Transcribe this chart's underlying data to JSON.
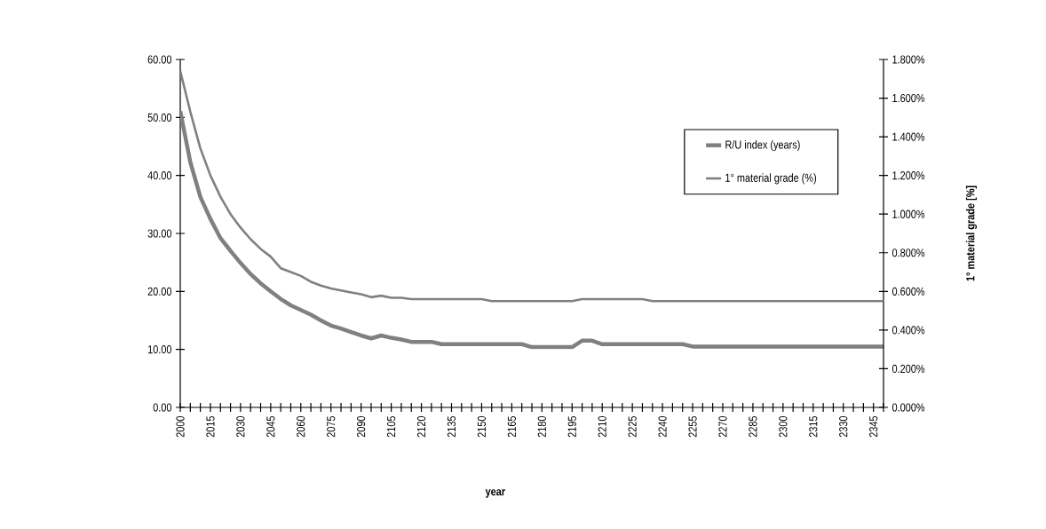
{
  "chart_data": {
    "type": "line",
    "xlabel": "year",
    "y2label": "1° material grade [%]",
    "xlim": [
      2000,
      2350
    ],
    "ylim": [
      0,
      60
    ],
    "y2lim": [
      0,
      1.8
    ],
    "xticks": [
      {
        "value": 2000,
        "label": "2000"
      },
      {
        "value": 2005,
        "label": null
      },
      {
        "value": 2010,
        "label": null
      },
      {
        "value": 2015,
        "label": "2015"
      },
      {
        "value": 2020,
        "label": null
      },
      {
        "value": 2025,
        "label": null
      },
      {
        "value": 2030,
        "label": "2030"
      },
      {
        "value": 2035,
        "label": null
      },
      {
        "value": 2040,
        "label": null
      },
      {
        "value": 2045,
        "label": "2045"
      },
      {
        "value": 2050,
        "label": null
      },
      {
        "value": 2055,
        "label": null
      },
      {
        "value": 2060,
        "label": "2060"
      },
      {
        "value": 2065,
        "label": null
      },
      {
        "value": 2070,
        "label": null
      },
      {
        "value": 2075,
        "label": "2075"
      },
      {
        "value": 2080,
        "label": null
      },
      {
        "value": 2085,
        "label": null
      },
      {
        "value": 2090,
        "label": "2090"
      },
      {
        "value": 2095,
        "label": null
      },
      {
        "value": 2100,
        "label": null
      },
      {
        "value": 2105,
        "label": "2105"
      },
      {
        "value": 2110,
        "label": null
      },
      {
        "value": 2115,
        "label": null
      },
      {
        "value": 2120,
        "label": "2120"
      },
      {
        "value": 2125,
        "label": null
      },
      {
        "value": 2130,
        "label": null
      },
      {
        "value": 2135,
        "label": "2135"
      },
      {
        "value": 2140,
        "label": null
      },
      {
        "value": 2145,
        "label": null
      },
      {
        "value": 2150,
        "label": "2150"
      },
      {
        "value": 2155,
        "label": null
      },
      {
        "value": 2160,
        "label": null
      },
      {
        "value": 2165,
        "label": "2165"
      },
      {
        "value": 2170,
        "label": null
      },
      {
        "value": 2175,
        "label": null
      },
      {
        "value": 2180,
        "label": "2180"
      },
      {
        "value": 2185,
        "label": null
      },
      {
        "value": 2190,
        "label": null
      },
      {
        "value": 2195,
        "label": "2195"
      },
      {
        "value": 2200,
        "label": null
      },
      {
        "value": 2205,
        "label": null
      },
      {
        "value": 2210,
        "label": "2210"
      },
      {
        "value": 2215,
        "label": null
      },
      {
        "value": 2220,
        "label": null
      },
      {
        "value": 2225,
        "label": "2225"
      },
      {
        "value": 2230,
        "label": null
      },
      {
        "value": 2235,
        "label": null
      },
      {
        "value": 2240,
        "label": "2240"
      },
      {
        "value": 2245,
        "label": null
      },
      {
        "value": 2250,
        "label": null
      },
      {
        "value": 2255,
        "label": "2255"
      },
      {
        "value": 2260,
        "label": null
      },
      {
        "value": 2265,
        "label": null
      },
      {
        "value": 2270,
        "label": "2270"
      },
      {
        "value": 2275,
        "label": null
      },
      {
        "value": 2280,
        "label": null
      },
      {
        "value": 2285,
        "label": "2285"
      },
      {
        "value": 2290,
        "label": null
      },
      {
        "value": 2295,
        "label": null
      },
      {
        "value": 2300,
        "label": "2300"
      },
      {
        "value": 2305,
        "label": null
      },
      {
        "value": 2310,
        "label": null
      },
      {
        "value": 2315,
        "label": "2315"
      },
      {
        "value": 2320,
        "label": null
      },
      {
        "value": 2325,
        "label": null
      },
      {
        "value": 2330,
        "label": "2330"
      },
      {
        "value": 2335,
        "label": null
      },
      {
        "value": 2340,
        "label": null
      },
      {
        "value": 2345,
        "label": "2345"
      },
      {
        "value": 2350,
        "label": null
      }
    ],
    "yticks": [
      {
        "value": 0,
        "label": "0.00"
      },
      {
        "value": 10,
        "label": "10.00"
      },
      {
        "value": 20,
        "label": "20.00"
      },
      {
        "value": 30,
        "label": "30.00"
      },
      {
        "value": 40,
        "label": "40.00"
      },
      {
        "value": 50,
        "label": "50.00"
      },
      {
        "value": 60,
        "label": "60.00"
      }
    ],
    "y2ticks": [
      {
        "value": 0,
        "label": "0.000%"
      },
      {
        "value": 0.2,
        "label": "0.200%"
      },
      {
        "value": 0.4,
        "label": "0.400%"
      },
      {
        "value": 0.6,
        "label": "0.600%"
      },
      {
        "value": 0.8,
        "label": "0.800%"
      },
      {
        "value": 1.0,
        "label": "1.000%"
      },
      {
        "value": 1.2,
        "label": "1.200%"
      },
      {
        "value": 1.4,
        "label": "1.400%"
      },
      {
        "value": 1.6,
        "label": "1.600%"
      },
      {
        "value": 1.8,
        "label": "1.800%"
      }
    ],
    "grid": false,
    "legend": "top right",
    "marker": "none",
    "line_style": "solid",
    "series": [
      {
        "name": "R/U index (years)",
        "color": "#808080",
        "x": [
          2000,
          2005,
          2010,
          2015,
          2020,
          2025,
          2030,
          2035,
          2040,
          2045,
          2050,
          2055,
          2060,
          2065,
          2070,
          2075,
          2080,
          2085,
          2090,
          2095,
          2100,
          2105,
          2110,
          2115,
          2125,
          2130,
          2170,
          2175,
          2195,
          2200,
          2205,
          2210,
          2250,
          2255,
          2350
        ],
        "values": [
          51.1,
          42.3,
          36.3,
          32.5,
          29.2,
          27.0,
          24.9,
          23.0,
          21.4,
          20.0,
          18.7,
          17.6,
          16.8,
          16.0,
          15.0,
          14.1,
          13.6,
          13.0,
          12.4,
          11.9,
          12.4,
          12.0,
          11.7,
          11.3,
          11.3,
          10.9,
          10.9,
          10.4,
          10.4,
          11.5,
          11.5,
          10.9,
          10.9,
          10.5,
          10.5
        ]
      },
      {
        "name": "1° material grade (%)",
        "color": "#808080",
        "axis": "y2",
        "x": [
          2000,
          2005,
          2010,
          2015,
          2020,
          2025,
          2030,
          2035,
          2040,
          2045,
          2050,
          2055,
          2060,
          2065,
          2070,
          2075,
          2080,
          2085,
          2090,
          2095,
          2100,
          2105,
          2110,
          2115,
          2150,
          2155,
          2195,
          2200,
          2230,
          2235,
          2350
        ],
        "values": [
          1.74,
          1.53,
          1.34,
          1.2,
          1.09,
          1.0,
          0.93,
          0.87,
          0.82,
          0.78,
          0.72,
          0.7,
          0.68,
          0.65,
          0.63,
          0.615,
          0.605,
          0.595,
          0.585,
          0.57,
          0.578,
          0.567,
          0.567,
          0.56,
          0.56,
          0.55,
          0.55,
          0.56,
          0.56,
          0.55,
          0.55
        ]
      }
    ]
  }
}
